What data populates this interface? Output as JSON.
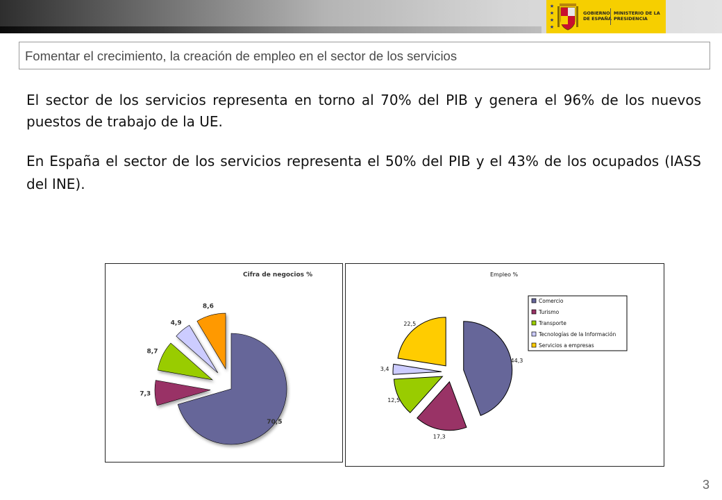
{
  "header": {
    "logo_text_1": "GOBIERNO DE ESPAÑA",
    "logo_text_2": "MINISTERIO DE LA PRESIDENCIA",
    "bar_colors": {
      "dark": "#2e2e2e",
      "light": "#e3e3e3",
      "logo_bg": "#f6cf00"
    }
  },
  "slide": {
    "title": "Fomentar el crecimiento,  la creación de empleo en el sector de los servicios",
    "paragraph_1": "El sector de los servicios representa en torno al 70% del PIB y genera el 96% de los nuevos puestos de trabajo de la UE.",
    "paragraph_2": "En España el sector de los servicios representa el 50% del PIB y el 43% de los ocupados (IASS del INE).",
    "page_number": "3"
  },
  "chart_data": [
    {
      "type": "pie",
      "title": "Cifra de negocios %",
      "exploded": true,
      "categories": [
        "Comercio",
        "Turismo",
        "Transporte",
        "Tecnologías de la Información",
        "Servicios a empresas"
      ],
      "values": [
        70.5,
        7.3,
        8.7,
        4.9,
        8.6
      ],
      "labels": [
        "70,5",
        "7,3",
        "8,7",
        "4,9",
        "8,6"
      ],
      "colors": [
        "#666699",
        "#993366",
        "#99cc00",
        "#ccccff",
        "#ff9900"
      ],
      "legend": "none",
      "background": "#ffffff"
    },
    {
      "type": "pie",
      "title": "Empleo %",
      "exploded": true,
      "categories": [
        "Comercio",
        "Turismo",
        "Transporte",
        "Tecnologías de la Información",
        "Servicios a empresas"
      ],
      "values": [
        44.3,
        17.3,
        12.5,
        3.4,
        22.5
      ],
      "labels": [
        "44,3",
        "17,3",
        "12,5",
        "3,4",
        "22,5"
      ],
      "colors": [
        "#666699",
        "#993366",
        "#99cc00",
        "#ccccff",
        "#ffcc00"
      ],
      "legend": "top-right",
      "background": "#ffffff"
    }
  ]
}
